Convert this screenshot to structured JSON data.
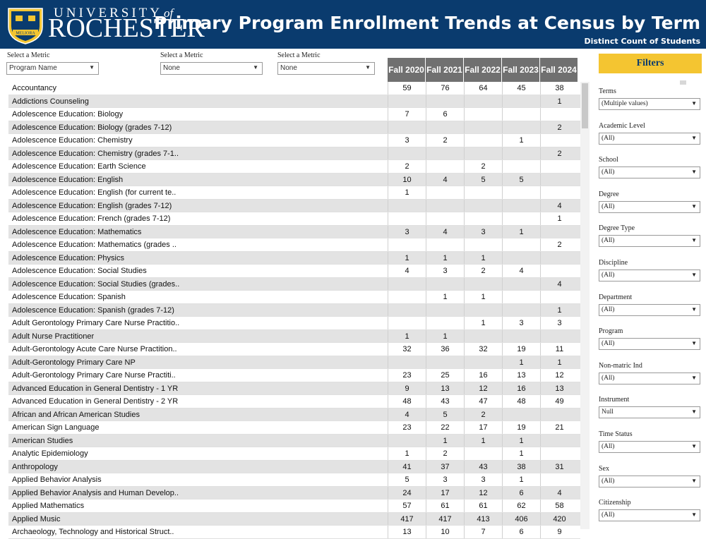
{
  "header": {
    "logo_university": "UNIVERSITY",
    "logo_of": "of",
    "logo_rochester": "ROCHESTER",
    "logo_motto": "MELIORA",
    "title": "Primary Program Enrollment Trends at Census by Term",
    "subtitle": "Distinct Count of Students",
    "background": "#0a3b6e"
  },
  "metrics": [
    {
      "label": "Select a Metric",
      "value": "Program Name"
    },
    {
      "label": "Select a Metric",
      "value": "None"
    },
    {
      "label": "Select a Metric",
      "value": "None"
    }
  ],
  "columns": [
    "Fall 2020",
    "Fall 2021",
    "Fall 2022",
    "Fall 2023",
    "Fall 2024"
  ],
  "rows": [
    {
      "name": "Accountancy",
      "values": [
        "59",
        "76",
        "64",
        "45",
        "38"
      ]
    },
    {
      "name": "Addictions Counseling",
      "values": [
        "",
        "",
        "",
        "",
        "1"
      ]
    },
    {
      "name": "Adolescence Education: Biology",
      "values": [
        "7",
        "6",
        "",
        "",
        ""
      ]
    },
    {
      "name": "Adolescence Education: Biology (grades 7-12)",
      "values": [
        "",
        "",
        "",
        "",
        "2"
      ]
    },
    {
      "name": "Adolescence Education: Chemistry",
      "values": [
        "3",
        "2",
        "",
        "1",
        ""
      ]
    },
    {
      "name": "Adolescence Education: Chemistry (grades 7-1..",
      "values": [
        "",
        "",
        "",
        "",
        "2"
      ]
    },
    {
      "name": "Adolescence Education: Earth Science",
      "values": [
        "2",
        "",
        "2",
        "",
        ""
      ]
    },
    {
      "name": "Adolescence Education: English",
      "values": [
        "10",
        "4",
        "5",
        "5",
        ""
      ]
    },
    {
      "name": "Adolescence Education: English  (for current te..",
      "values": [
        "1",
        "",
        "",
        "",
        ""
      ]
    },
    {
      "name": "Adolescence Education: English (grades 7-12)",
      "values": [
        "",
        "",
        "",
        "",
        "4"
      ]
    },
    {
      "name": "Adolescence Education: French (grades 7-12)",
      "values": [
        "",
        "",
        "",
        "",
        "1"
      ]
    },
    {
      "name": "Adolescence Education: Mathematics",
      "values": [
        "3",
        "4",
        "3",
        "1",
        ""
      ]
    },
    {
      "name": "Adolescence Education: Mathematics (grades ..",
      "values": [
        "",
        "",
        "",
        "",
        "2"
      ]
    },
    {
      "name": "Adolescence Education: Physics",
      "values": [
        "1",
        "1",
        "1",
        "",
        ""
      ]
    },
    {
      "name": "Adolescence Education: Social Studies",
      "values": [
        "4",
        "3",
        "2",
        "4",
        ""
      ]
    },
    {
      "name": "Adolescence Education: Social Studies (grades..",
      "values": [
        "",
        "",
        "",
        "",
        "4"
      ]
    },
    {
      "name": "Adolescence Education:  Spanish",
      "values": [
        "",
        "1",
        "1",
        "",
        ""
      ]
    },
    {
      "name": "Adolescence Education: Spanish (grades 7-12)",
      "values": [
        "",
        "",
        "",
        "",
        "1"
      ]
    },
    {
      "name": "Adult Gerontology Primary Care Nurse Practitio..",
      "values": [
        "",
        "",
        "1",
        "3",
        "3"
      ]
    },
    {
      "name": "Adult Nurse Practitioner",
      "values": [
        "1",
        "1",
        "",
        "",
        ""
      ]
    },
    {
      "name": "Adult-Gerontology Acute Care Nurse Practition..",
      "values": [
        "32",
        "36",
        "32",
        "19",
        "11"
      ]
    },
    {
      "name": "Adult-Gerontology Primary Care NP",
      "values": [
        "",
        "",
        "",
        "1",
        "1"
      ]
    },
    {
      "name": "Adult-Gerontology Primary Care Nurse Practiti..",
      "values": [
        "23",
        "25",
        "16",
        "13",
        "12"
      ]
    },
    {
      "name": "Advanced Education in General Dentistry - 1 YR",
      "values": [
        "9",
        "13",
        "12",
        "16",
        "13"
      ]
    },
    {
      "name": "Advanced Education in General Dentistry - 2 YR",
      "values": [
        "48",
        "43",
        "47",
        "48",
        "49"
      ]
    },
    {
      "name": "African and African American Studies",
      "values": [
        "4",
        "5",
        "2",
        "",
        ""
      ]
    },
    {
      "name": "American Sign Language",
      "values": [
        "23",
        "22",
        "17",
        "19",
        "21"
      ]
    },
    {
      "name": "American Studies",
      "values": [
        "",
        "1",
        "1",
        "1",
        ""
      ]
    },
    {
      "name": "Analytic Epidemiology",
      "values": [
        "1",
        "2",
        "",
        "1",
        ""
      ]
    },
    {
      "name": "Anthropology",
      "values": [
        "41",
        "37",
        "43",
        "38",
        "31"
      ]
    },
    {
      "name": "Applied Behavior Analysis",
      "values": [
        "5",
        "3",
        "3",
        "1",
        ""
      ]
    },
    {
      "name": "Applied Behavior Analysis and Human Develop..",
      "values": [
        "24",
        "17",
        "12",
        "6",
        "4"
      ]
    },
    {
      "name": "Applied Mathematics",
      "values": [
        "57",
        "61",
        "61",
        "62",
        "58"
      ]
    },
    {
      "name": "Applied Music",
      "values": [
        "417",
        "417",
        "413",
        "406",
        "420"
      ]
    },
    {
      "name": "Archaeology, Technology and Historical Struct..",
      "values": [
        "13",
        "10",
        "7",
        "6",
        "9"
      ]
    }
  ],
  "filters": {
    "title": "Filters",
    "items": [
      {
        "label": "Terms",
        "value": "(Multiple values)"
      },
      {
        "label": "Academic Level",
        "value": "(All)"
      },
      {
        "label": "School",
        "value": "(All)"
      },
      {
        "label": "Degree",
        "value": "(All)"
      },
      {
        "label": "Degree Type",
        "value": "(All)"
      },
      {
        "label": "Discipline",
        "value": "(All)"
      },
      {
        "label": "Department",
        "value": "(All)"
      },
      {
        "label": "Program",
        "value": "(All)"
      },
      {
        "label": "Non-matric Ind",
        "value": "(All)"
      },
      {
        "label": "Instrument",
        "value": "Null"
      },
      {
        "label": "Time Status",
        "value": "(All)"
      },
      {
        "label": "Sex",
        "value": "(All)"
      },
      {
        "label": "Citizenship",
        "value": "(All)"
      }
    ]
  },
  "colors": {
    "header_bg": "#0a3b6e",
    "filters_accent": "#f4c531",
    "column_header_bg": "#707070",
    "alt_row_bg": "#e3e3e3"
  }
}
